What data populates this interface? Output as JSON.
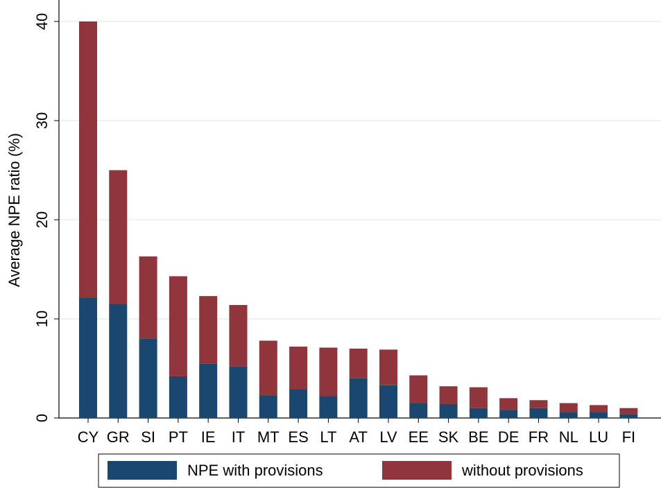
{
  "chart_data": {
    "type": "stacked_bar",
    "y_label": "Average NPE ratio (%)",
    "categories": [
      "CY",
      "GR",
      "SI",
      "PT",
      "IE",
      "IT",
      "MT",
      "ES",
      "LT",
      "AT",
      "LV",
      "EE",
      "SK",
      "BE",
      "DE",
      "FR",
      "NL",
      "LU",
      "FI"
    ],
    "series": [
      {
        "name": "NPE with provisions",
        "color": "#1a476f",
        "values": [
          12.1,
          11.5,
          8.0,
          4.2,
          5.5,
          5.2,
          2.3,
          2.9,
          2.2,
          4.0,
          3.3,
          1.5,
          1.4,
          1.0,
          0.8,
          1.0,
          0.6,
          0.6,
          0.4
        ]
      },
      {
        "name": "without provisions",
        "color": "#90353b",
        "values": [
          27.9,
          13.5,
          8.3,
          10.1,
          6.8,
          6.2,
          5.5,
          4.3,
          4.9,
          3.0,
          3.6,
          2.8,
          1.8,
          2.1,
          1.2,
          0.8,
          0.9,
          0.7,
          0.6
        ]
      }
    ],
    "ylim": [
      0,
      40
    ],
    "yticks": [
      0,
      10,
      20,
      30,
      40
    ],
    "grid": true
  }
}
